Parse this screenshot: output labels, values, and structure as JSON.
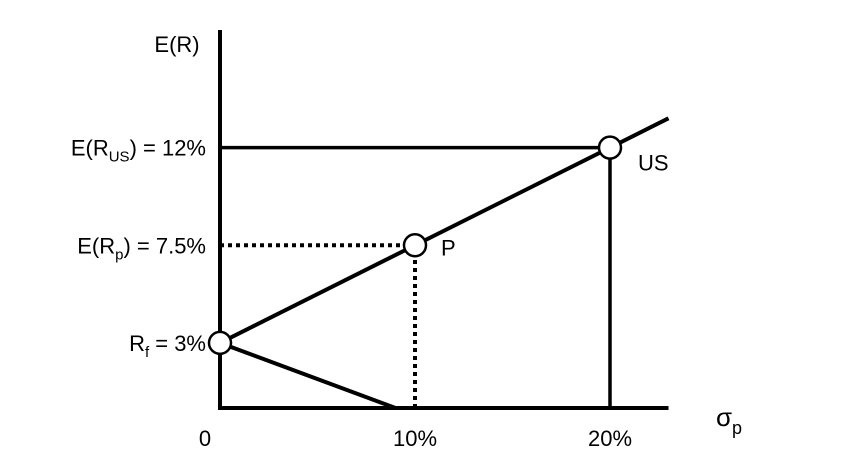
{
  "chart_data": {
    "type": "line",
    "title": "",
    "ylabel": "E(R)",
    "xlabel_symbol": "σ",
    "xlabel_sub": "p",
    "xlim": [
      0,
      23
    ],
    "ylim": [
      0,
      15
    ],
    "x_ticks": [
      {
        "value": 0,
        "label": "0"
      },
      {
        "value": 10,
        "label": "10%"
      },
      {
        "value": 20,
        "label": "20%"
      }
    ],
    "y_labels": [
      {
        "value": 12,
        "pre": "E(R",
        "sub": "US",
        "post": ") = 12%"
      },
      {
        "value": 7.5,
        "pre": "E(R",
        "sub": "p",
        "post": ") = 7.5%"
      },
      {
        "value": 3,
        "pre": "R",
        "sub": "f",
        "post": " = 3%"
      }
    ],
    "series": [
      {
        "x": [
          0,
          23
        ],
        "y": [
          3,
          13.35
        ],
        "style": "solid"
      },
      {
        "x": [
          0,
          9
        ],
        "y": [
          3,
          0
        ],
        "style": "solid"
      }
    ],
    "points": [
      {
        "label": "",
        "x": 0,
        "y": 3
      },
      {
        "label": "P",
        "x": 10,
        "y": 7.5
      },
      {
        "label": "US",
        "x": 20,
        "y": 12
      }
    ],
    "reference_lines": [
      {
        "kind": "horizontal",
        "y": 12,
        "x_to": 20,
        "style": "solid"
      },
      {
        "kind": "vertical",
        "x": 20,
        "y_to": 12,
        "style": "solid"
      },
      {
        "kind": "horizontal",
        "y": 7.5,
        "x_to": 10,
        "style": "dotted"
      },
      {
        "kind": "vertical",
        "x": 10,
        "y_to": 7.5,
        "style": "dotted"
      }
    ],
    "colors": {
      "line": "#000000",
      "marker_fill": "#ffffff",
      "background": "#ffffff"
    }
  }
}
